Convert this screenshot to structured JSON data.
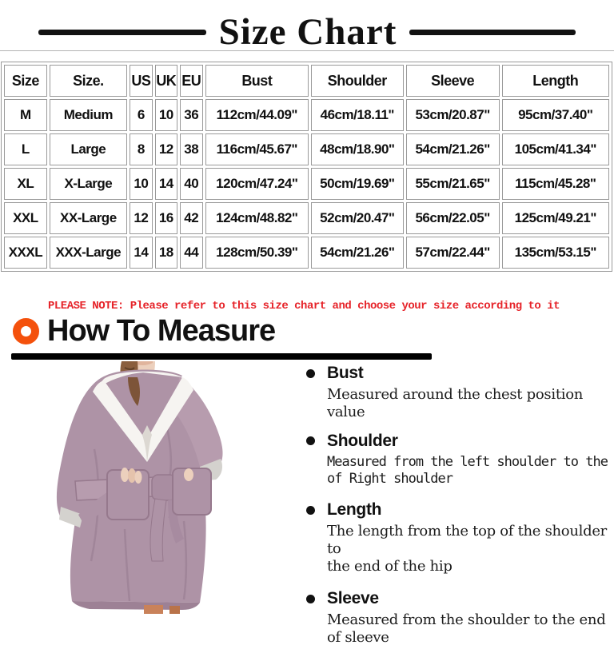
{
  "title": "Size Chart",
  "table": {
    "headers": [
      "Size",
      "Size.",
      "US",
      "UK",
      "EU",
      "Bust",
      "Shoulder",
      "Sleeve",
      "Length"
    ],
    "rows": [
      [
        "M",
        "Medium",
        "6",
        "10",
        "36",
        "112cm/44.09\"",
        "46cm/18.11\"",
        "53cm/20.87\"",
        "95cm/37.40\""
      ],
      [
        "L",
        "Large",
        "8",
        "12",
        "38",
        "116cm/45.67\"",
        "48cm/18.90\"",
        "54cm/21.26\"",
        "105cm/41.34\""
      ],
      [
        "XL",
        "X-Large",
        "10",
        "14",
        "40",
        "120cm/47.24\"",
        "50cm/19.69\"",
        "55cm/21.65\"",
        "115cm/45.28\""
      ],
      [
        "XXL",
        "XX-Large",
        "12",
        "16",
        "42",
        "124cm/48.82\"",
        "52cm/20.47\"",
        "56cm/22.05\"",
        "125cm/49.21\""
      ],
      [
        "XXXL",
        "XXX-Large",
        "14",
        "18",
        "44",
        "128cm/50.39\"",
        "54cm/21.26\"",
        "57cm/22.44\"",
        "135cm/53.15\""
      ]
    ]
  },
  "note": "PLEASE NOTE: Please refer to this size chart and choose your size according to it",
  "how_to_measure": {
    "title": "How To Measure"
  },
  "measure_items": [
    {
      "label": "Bust",
      "desc_lines": [
        "Measured around the chest position value"
      ],
      "mono": false
    },
    {
      "label": "Shoulder",
      "desc_lines": [
        "Measured from the left shoulder to the",
        "of Right shoulder"
      ],
      "mono": true
    },
    {
      "label": "Length",
      "desc_lines": [
        "The length from the top of the shoulder to",
        "the end of the hip"
      ],
      "mono": false
    },
    {
      "label": "Sleeve",
      "desc_lines": [
        "Measured from the shoulder to the end",
        "of sleeve"
      ],
      "mono": false
    }
  ],
  "icons": {
    "heading_icon": "orange-ring-icon",
    "list_marker": "bullet-dot-icon"
  },
  "colors": {
    "note_red": "#e62329",
    "ring_orange": "#f4510c",
    "robe_main": "#ae93a6",
    "robe_shadow": "#8f7288",
    "collar_white": "#f6f4f1",
    "hair_brown": "#8a5e3d",
    "skin": "#ecd0bd",
    "table_border": "#9a9a9a"
  }
}
